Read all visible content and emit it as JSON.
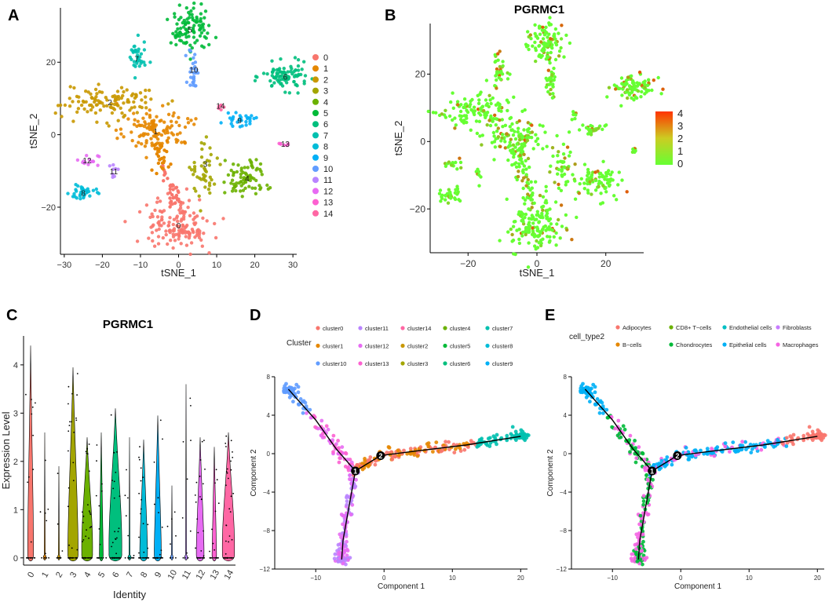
{
  "colors": {
    "clusters": [
      "#F8766D",
      "#E58700",
      "#C99800",
      "#A3A500",
      "#6BB100",
      "#00BA38",
      "#00BF7D",
      "#00C0AF",
      "#00BCD8",
      "#00B0F6",
      "#619CFF",
      "#B983FF",
      "#E76BF3",
      "#FD61D1",
      "#FF67A4"
    ],
    "celltypes": [
      "#F8766D",
      "#B79F00",
      "#00BA38",
      "#00BFC4",
      "#619CFF",
      "#F564E3"
    ],
    "gradient_low": "#66FF33",
    "gradient_high": "#FF3300"
  },
  "chart_data": [
    {
      "panel": "A",
      "type": "scatter",
      "title": "",
      "xlabel": "tSNE_1",
      "ylabel": "tSNE_2",
      "xlim": [
        -31,
        31
      ],
      "ylim": [
        -33,
        35
      ],
      "xticks": [
        -30,
        -20,
        -10,
        0,
        10,
        20,
        30
      ],
      "yticks": [
        -20,
        0,
        20
      ],
      "legend": [
        "0",
        "1",
        "2",
        "3",
        "4",
        "5",
        "6",
        "7",
        "8",
        "9",
        "10",
        "11",
        "12",
        "13",
        "14"
      ],
      "series": [
        {
          "name": "0",
          "cx": 0,
          "cy": -25,
          "sx": 4,
          "sy": 3.5,
          "n": 150
        },
        {
          "name": "1",
          "cx": -6,
          "cy": 1,
          "sx": 4,
          "sy": 3,
          "n": 120
        },
        {
          "name": "2",
          "cx": -18,
          "cy": 9,
          "sx": 6,
          "sy": 2.5,
          "n": 110
        },
        {
          "name": "3",
          "cx": 7,
          "cy": -8,
          "sx": 2,
          "sy": 4,
          "n": 45
        },
        {
          "name": "4",
          "cx": 18,
          "cy": -12,
          "sx": 3,
          "sy": 2.5,
          "n": 80
        },
        {
          "name": "5",
          "cx": 3,
          "cy": 29,
          "sx": 2.5,
          "sy": 3,
          "n": 100
        },
        {
          "name": "6",
          "cx": 28,
          "cy": 16,
          "sx": 3,
          "sy": 1.8,
          "n": 90
        },
        {
          "name": "7",
          "cx": -11,
          "cy": 21,
          "sx": 1.2,
          "sy": 2.5,
          "n": 35
        },
        {
          "name": "8",
          "cx": -25,
          "cy": -16,
          "sx": 1.8,
          "sy": 1.2,
          "n": 35
        },
        {
          "name": "9",
          "cx": 16,
          "cy": 4,
          "sx": 2,
          "sy": 0.8,
          "n": 28
        },
        {
          "name": "10",
          "cx": 4,
          "cy": 18,
          "sx": 0.7,
          "sy": 3,
          "n": 28
        },
        {
          "name": "11",
          "cx": -17,
          "cy": -10,
          "sx": 0.6,
          "sy": 1.2,
          "n": 8
        },
        {
          "name": "12",
          "cx": -24,
          "cy": -7,
          "sx": 1.5,
          "sy": 0.8,
          "n": 14
        },
        {
          "name": "13",
          "cx": 28,
          "cy": -2.5,
          "sx": 1,
          "sy": 0.4,
          "n": 6
        },
        {
          "name": "14",
          "cx": 11,
          "cy": 8,
          "sx": 0.6,
          "sy": 0.8,
          "n": 6
        }
      ]
    },
    {
      "panel": "B",
      "type": "scatter",
      "title": "PGRMC1",
      "xlabel": "tSNE_1",
      "ylabel": "tSNE_2",
      "xlim": [
        -31,
        31
      ],
      "ylim": [
        -33,
        35
      ],
      "xticks": [
        -20,
        0,
        20
      ],
      "yticks": [
        -20,
        0,
        20
      ],
      "colorbar": {
        "min": 0,
        "max": 4,
        "ticks": [
          "0",
          "1",
          "2",
          "3",
          "4"
        ]
      }
    },
    {
      "panel": "C",
      "type": "violin",
      "title": "PGRMC1",
      "xlabel": "Identity",
      "ylabel": "Expression Level",
      "ylim": [
        -0.15,
        4.6
      ],
      "yticks": [
        0,
        1,
        2,
        3,
        4
      ],
      "categories": [
        "0",
        "1",
        "2",
        "3",
        "4",
        "5",
        "6",
        "7",
        "8",
        "9",
        "10",
        "11",
        "12",
        "13",
        "14"
      ],
      "max_values": [
        4.4,
        2.6,
        1.9,
        3.95,
        2.5,
        2.6,
        3.1,
        2.5,
        2.45,
        2.95,
        1.5,
        3.6,
        2.5,
        2.3,
        2.6
      ],
      "body_height": [
        2.4,
        0.15,
        0.1,
        2.3,
        2.5,
        0.8,
        3.1,
        0.2,
        1.2,
        1.0,
        0.1,
        0.2,
        1.3,
        0.4,
        2.6
      ],
      "body_width": [
        0.45,
        0.15,
        0.1,
        0.8,
        0.85,
        0.3,
        1.0,
        0.2,
        0.6,
        0.55,
        0.1,
        0.15,
        0.6,
        0.35,
        0.95
      ]
    },
    {
      "panel": "D",
      "type": "scatter",
      "title": "",
      "xlabel": "Component 1",
      "ylabel": "Component 2",
      "xlim": [
        -16,
        21
      ],
      "ylim": [
        -12,
        8
      ],
      "xticks": [
        -10,
        0,
        10,
        20
      ],
      "yticks": [
        -12,
        -8,
        -4,
        0,
        4,
        8
      ],
      "legend_title": "Cluster",
      "legend": [
        "cluster0",
        "cluster11",
        "cluster14",
        "cluster4",
        "cluster7",
        "cluster1",
        "cluster12",
        "cluster2",
        "cluster5",
        "cluster8",
        "cluster10",
        "cluster13",
        "cluster3",
        "cluster6",
        "cluster9"
      ],
      "legend_color_index": [
        0,
        11,
        14,
        4,
        7,
        1,
        12,
        2,
        5,
        8,
        10,
        13,
        3,
        6,
        9
      ],
      "branch_points": [
        {
          "label": "1",
          "x": -4.2,
          "y": -1.8
        },
        {
          "label": "2",
          "x": -0.5,
          "y": -0.2
        }
      ],
      "trajectory": [
        [
          [
            -14,
            6.7
          ],
          [
            -10,
            3.5
          ],
          [
            -7,
            0.5
          ],
          [
            -4.2,
            -1.8
          ]
        ],
        [
          [
            -4.2,
            -1.8
          ],
          [
            -5,
            -5
          ],
          [
            -6,
            -9
          ],
          [
            -6.2,
            -11
          ]
        ],
        [
          [
            -4.2,
            -1.8
          ],
          [
            -0.5,
            -0.2
          ],
          [
            5,
            0.3
          ],
          [
            12,
            0.9
          ],
          [
            20,
            1.8
          ]
        ]
      ]
    },
    {
      "panel": "E",
      "type": "scatter",
      "title": "",
      "xlabel": "Component 1",
      "ylabel": "Component 2",
      "xlim": [
        -16,
        21
      ],
      "ylim": [
        -12,
        8
      ],
      "xticks": [
        -10,
        0,
        10,
        20
      ],
      "yticks": [
        -12,
        -8,
        -4,
        0,
        4,
        8
      ],
      "legend_title": "cell_type2",
      "legend": [
        "Adipocytes",
        "CD8+ T−cells",
        "Endothelial cells",
        "Fibroblasts",
        "B−cells",
        "Chondrocytes",
        "Epithelial cells",
        "Macrophages"
      ],
      "legend_color": [
        "#F8766D",
        "#6BB100",
        "#00BFC4",
        "#C77CFF",
        "#E58700",
        "#00BA38",
        "#00B0F6",
        "#F564E3"
      ],
      "branch_points": [
        {
          "label": "1",
          "x": -4.2,
          "y": -1.8
        },
        {
          "label": "2",
          "x": -0.5,
          "y": -0.2
        }
      ],
      "trajectory": [
        [
          [
            -14,
            6.7
          ],
          [
            -10,
            3.5
          ],
          [
            -7,
            0.5
          ],
          [
            -4.2,
            -1.8
          ]
        ],
        [
          [
            -4.2,
            -1.8
          ],
          [
            -5,
            -5
          ],
          [
            -6,
            -9
          ],
          [
            -6.2,
            -11
          ]
        ],
        [
          [
            -4.2,
            -1.8
          ],
          [
            -0.5,
            -0.2
          ],
          [
            5,
            0.3
          ],
          [
            12,
            0.9
          ],
          [
            20,
            1.8
          ]
        ]
      ]
    }
  ],
  "panels": {
    "A": {
      "label": "A"
    },
    "B": {
      "label": "B"
    },
    "C": {
      "label": "C"
    },
    "D": {
      "label": "D"
    },
    "E": {
      "label": "E"
    }
  }
}
